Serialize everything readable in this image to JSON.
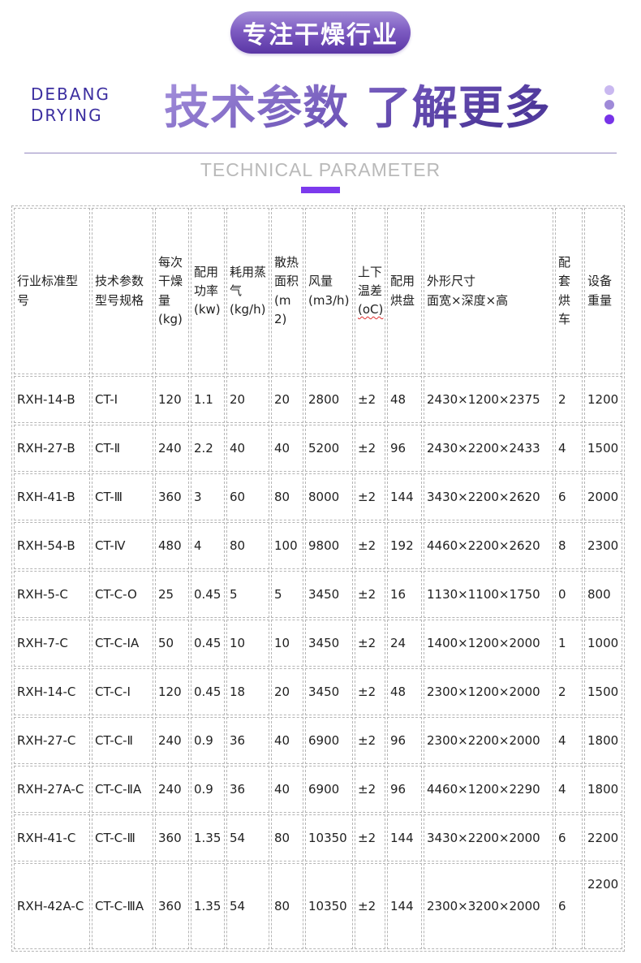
{
  "badge": {
    "text": "专注干燥行业"
  },
  "brand": {
    "line1": "DEBANG",
    "line2": "DRYING"
  },
  "title": "技术参数 了解更多",
  "subtitle": "TECHNICAL PARAMETER",
  "decor": {
    "badge_gradient": [
      "#a58fd9",
      "#5a36a5"
    ],
    "title_gradient": [
      "#b4a2e7",
      "#4c3698"
    ],
    "brand_color": "#3c2fa0",
    "dot_colors": [
      "#c9b8f0",
      "#9f8ad8",
      "#7733e8"
    ],
    "divider_color": "#9488c0",
    "subtitle_color": "#b9b9b9",
    "accent_bar_color": "#7c3aed",
    "table_border_color": "#b5b5b5",
    "misspell_underline_color": "#e03131"
  },
  "table": {
    "columns": [
      {
        "label": "行业标准型号"
      },
      {
        "label": "技术参数型号规格"
      },
      {
        "label": "每次干燥量",
        "unit": "(kg)"
      },
      {
        "label": "配用功率",
        "unit": "(kw)"
      },
      {
        "label": "耗用蒸气",
        "unit": "(kg/h)"
      },
      {
        "label": "散热面积",
        "unit": "(m2)"
      },
      {
        "label": "风量",
        "unit": "(m3/h)"
      },
      {
        "label": "上下温差",
        "unit": "(oC)",
        "unit_underline": "red-wavy"
      },
      {
        "label": "配用烘盘"
      },
      {
        "label": "外形尺寸",
        "unit": "面宽×深度×高"
      },
      {
        "label": "配套烘车"
      },
      {
        "label": "设备重量"
      }
    ],
    "rows": [
      [
        "RXH-14-B",
        "CT-Ⅰ",
        "120",
        "1.1",
        "20",
        "20",
        "2800",
        "±2",
        "48",
        "2430×1200×2375",
        "2",
        "1200"
      ],
      [
        "RXH-27-B",
        "CT-Ⅱ",
        "240",
        "2.2",
        "40",
        "40",
        "5200",
        "±2",
        "96",
        "2430×2200×2433",
        "4",
        "1500"
      ],
      [
        "RXH-41-B",
        "CT-Ⅲ",
        "360",
        "3",
        "60",
        "80",
        "8000",
        "±2",
        "144",
        "3430×2200×2620",
        "6",
        "2000"
      ],
      [
        "RXH-54-B",
        "CT-Ⅳ",
        "480",
        "4",
        "80",
        "100",
        "9800",
        "±2",
        "192",
        "4460×2200×2620",
        "8",
        "2300"
      ],
      [
        "RXH-5-C",
        "CT-C-O",
        "25",
        "0.45",
        "5",
        "5",
        "3450",
        "±2",
        "16",
        "1130×1100×1750",
        "0",
        "800"
      ],
      [
        "RXH-7-C",
        "CT-C-ⅠA",
        "50",
        "0.45",
        "10",
        "10",
        "3450",
        "±2",
        "24",
        "1400×1200×2000",
        "1",
        "1000"
      ],
      [
        "RXH-14-C",
        "CT-C-Ⅰ",
        "120",
        "0.45",
        "18",
        "20",
        "3450",
        "±2",
        "48",
        "2300×1200×2000",
        "2",
        "1500"
      ],
      [
        "RXH-27-C",
        "CT-C-Ⅱ",
        "240",
        "0.9",
        "36",
        "40",
        "6900",
        "±2",
        "96",
        "2300×2200×2000",
        "4",
        "1800"
      ],
      [
        "RXH-27A-C",
        "CT-C-ⅡA",
        "240",
        "0.9",
        "36",
        "40",
        "6900",
        "±2",
        "96",
        "4460×1200×2290",
        "4",
        "1800"
      ],
      [
        "RXH-41-C",
        "CT-C-Ⅲ",
        "360",
        "1.35",
        "54",
        "80",
        "10350",
        "±2",
        "144",
        "3430×2200×2000",
        "6",
        "2200"
      ],
      [
        "RXH-42A-C",
        "CT-C-ⅢA",
        "360",
        "1.35",
        "54",
        "80",
        "10350",
        "±2",
        "144",
        "2300×3200×2000",
        "6",
        "2200"
      ]
    ]
  }
}
